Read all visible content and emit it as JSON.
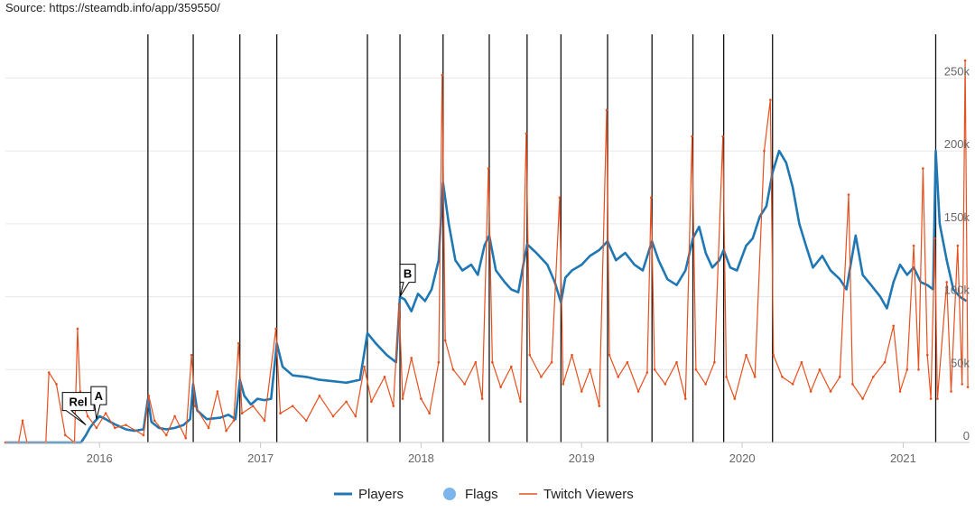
{
  "source_text": "Source: https://steamdb.info/app/359550/",
  "chart_data": {
    "type": "line",
    "grid": true,
    "x_range": [
      "2015-06-01",
      "2021-06-01"
    ],
    "y_range": [
      0,
      280000
    ],
    "y_ticks": [
      {
        "value": 0,
        "label": "0"
      },
      {
        "value": 50000,
        "label": "50k"
      },
      {
        "value": 100000,
        "label": "100k"
      },
      {
        "value": 150000,
        "label": "150k"
      },
      {
        "value": 200000,
        "label": "200k"
      },
      {
        "value": 250000,
        "label": "250k"
      }
    ],
    "x_ticks": [
      {
        "value": "2016-01-01",
        "label": "2016"
      },
      {
        "value": "2017-01-01",
        "label": "2017"
      },
      {
        "value": "2018-01-01",
        "label": "2018"
      },
      {
        "value": "2019-01-01",
        "label": "2019"
      },
      {
        "value": "2020-01-01",
        "label": "2020"
      },
      {
        "value": "2021-01-01",
        "label": "2021"
      }
    ],
    "event_lines": [
      "2016-04-20",
      "2016-08-01",
      "2016-11-15",
      "2017-02-07",
      "2017-09-01",
      "2017-11-14",
      "2018-02-20",
      "2018-06-05",
      "2018-08-30",
      "2018-11-15",
      "2019-03-01",
      "2019-06-10",
      "2019-09-11",
      "2019-11-20",
      "2020-03-10",
      "2021-03-16"
    ],
    "flags": [
      {
        "label": "Rel",
        "date": "2015-12-01",
        "value": 12000
      },
      {
        "label": "A",
        "date": "2015-12-25",
        "value": 16000
      },
      {
        "label": "B",
        "date": "2017-11-14",
        "value": 100000
      }
    ],
    "legend_position": "bottom",
    "series": [
      {
        "name": "Players",
        "color": "#1f77b4",
        "points": [
          [
            "2015-06-01",
            0
          ],
          [
            "2015-09-01",
            0
          ],
          [
            "2015-11-20",
            0
          ],
          [
            "2015-12-01",
            5000
          ],
          [
            "2015-12-10",
            10000
          ],
          [
            "2015-12-20",
            14000
          ],
          [
            "2016-01-01",
            18000
          ],
          [
            "2016-01-15",
            16000
          ],
          [
            "2016-02-01",
            13000
          ],
          [
            "2016-02-15",
            11000
          ],
          [
            "2016-03-01",
            9000
          ],
          [
            "2016-03-20",
            8000
          ],
          [
            "2016-04-10",
            9000
          ],
          [
            "2016-04-20",
            30000
          ],
          [
            "2016-04-28",
            14000
          ],
          [
            "2016-05-15",
            10000
          ],
          [
            "2016-06-01",
            9000
          ],
          [
            "2016-06-20",
            10000
          ],
          [
            "2016-07-10",
            12000
          ],
          [
            "2016-07-25",
            16000
          ],
          [
            "2016-08-01",
            40000
          ],
          [
            "2016-08-10",
            22000
          ],
          [
            "2016-09-01",
            16000
          ],
          [
            "2016-10-01",
            17000
          ],
          [
            "2016-10-20",
            19000
          ],
          [
            "2016-11-05",
            16000
          ],
          [
            "2016-11-15",
            43000
          ],
          [
            "2016-11-25",
            32000
          ],
          [
            "2016-12-10",
            26000
          ],
          [
            "2016-12-25",
            30000
          ],
          [
            "2017-01-10",
            29000
          ],
          [
            "2017-01-25",
            30000
          ],
          [
            "2017-02-07",
            68000
          ],
          [
            "2017-02-20",
            52000
          ],
          [
            "2017-03-15",
            46000
          ],
          [
            "2017-04-15",
            45000
          ],
          [
            "2017-05-15",
            43000
          ],
          [
            "2017-06-15",
            42000
          ],
          [
            "2017-07-15",
            41000
          ],
          [
            "2017-08-15",
            43000
          ],
          [
            "2017-09-01",
            75000
          ],
          [
            "2017-09-20",
            68000
          ],
          [
            "2017-10-15",
            60000
          ],
          [
            "2017-11-05",
            55000
          ],
          [
            "2017-11-14",
            100000
          ],
          [
            "2017-11-25",
            98000
          ],
          [
            "2017-12-10",
            90000
          ],
          [
            "2017-12-25",
            102000
          ],
          [
            "2018-01-10",
            97000
          ],
          [
            "2018-01-25",
            105000
          ],
          [
            "2018-02-10",
            125000
          ],
          [
            "2018-02-20",
            178000
          ],
          [
            "2018-03-05",
            150000
          ],
          [
            "2018-03-20",
            125000
          ],
          [
            "2018-04-05",
            118000
          ],
          [
            "2018-04-25",
            122000
          ],
          [
            "2018-05-10",
            115000
          ],
          [
            "2018-05-25",
            135000
          ],
          [
            "2018-06-05",
            142000
          ],
          [
            "2018-06-20",
            118000
          ],
          [
            "2018-07-10",
            110000
          ],
          [
            "2018-07-25",
            105000
          ],
          [
            "2018-08-10",
            103000
          ],
          [
            "2018-08-30",
            136000
          ],
          [
            "2018-09-20",
            130000
          ],
          [
            "2018-10-15",
            122000
          ],
          [
            "2018-11-01",
            110000
          ],
          [
            "2018-11-15",
            96000
          ],
          [
            "2018-11-25",
            113000
          ],
          [
            "2018-12-10",
            118000
          ],
          [
            "2019-01-01",
            122000
          ],
          [
            "2019-01-20",
            128000
          ],
          [
            "2019-02-10",
            132000
          ],
          [
            "2019-03-01",
            138000
          ],
          [
            "2019-03-20",
            125000
          ],
          [
            "2019-04-10",
            130000
          ],
          [
            "2019-05-01",
            122000
          ],
          [
            "2019-05-20",
            118000
          ],
          [
            "2019-06-10",
            138000
          ],
          [
            "2019-06-25",
            125000
          ],
          [
            "2019-07-15",
            112000
          ],
          [
            "2019-08-05",
            108000
          ],
          [
            "2019-08-25",
            118000
          ],
          [
            "2019-09-11",
            140000
          ],
          [
            "2019-09-25",
            148000
          ],
          [
            "2019-10-10",
            130000
          ],
          [
            "2019-10-25",
            120000
          ],
          [
            "2019-11-10",
            125000
          ],
          [
            "2019-11-20",
            132000
          ],
          [
            "2019-12-05",
            120000
          ],
          [
            "2019-12-20",
            118000
          ],
          [
            "2020-01-10",
            135000
          ],
          [
            "2020-01-25",
            140000
          ],
          [
            "2020-02-10",
            155000
          ],
          [
            "2020-02-25",
            162000
          ],
          [
            "2020-03-10",
            185000
          ],
          [
            "2020-03-25",
            200000
          ],
          [
            "2020-04-10",
            192000
          ],
          [
            "2020-04-25",
            175000
          ],
          [
            "2020-05-10",
            150000
          ],
          [
            "2020-05-25",
            135000
          ],
          [
            "2020-06-10",
            120000
          ],
          [
            "2020-07-01",
            128000
          ],
          [
            "2020-07-20",
            118000
          ],
          [
            "2020-08-10",
            112000
          ],
          [
            "2020-08-25",
            105000
          ],
          [
            "2020-09-15",
            142000
          ],
          [
            "2020-10-01",
            115000
          ],
          [
            "2020-10-20",
            108000
          ],
          [
            "2020-11-10",
            100000
          ],
          [
            "2020-11-25",
            92000
          ],
          [
            "2020-12-10",
            110000
          ],
          [
            "2020-12-25",
            122000
          ],
          [
            "2021-01-10",
            115000
          ],
          [
            "2021-01-25",
            120000
          ],
          [
            "2021-02-10",
            110000
          ],
          [
            "2021-02-25",
            108000
          ],
          [
            "2021-03-10",
            105000
          ],
          [
            "2021-03-16",
            200000
          ],
          [
            "2021-03-25",
            150000
          ],
          [
            "2021-04-10",
            125000
          ],
          [
            "2021-04-25",
            105000
          ],
          [
            "2021-05-10",
            100000
          ],
          [
            "2021-05-25",
            97000
          ]
        ]
      },
      {
        "name": "Twitch Viewers",
        "color": "#e6501e",
        "points": [
          [
            "2015-06-01",
            0
          ],
          [
            "2015-07-01",
            0
          ],
          [
            "2015-07-10",
            15000
          ],
          [
            "2015-07-20",
            0
          ],
          [
            "2015-09-01",
            0
          ],
          [
            "2015-09-08",
            48000
          ],
          [
            "2015-09-25",
            40000
          ],
          [
            "2015-10-15",
            5000
          ],
          [
            "2015-11-05",
            0
          ],
          [
            "2015-11-12",
            78000
          ],
          [
            "2015-11-18",
            35000
          ],
          [
            "2015-12-05",
            18000
          ],
          [
            "2015-12-25",
            10000
          ],
          [
            "2016-01-15",
            20000
          ],
          [
            "2016-02-05",
            10000
          ],
          [
            "2016-03-01",
            12000
          ],
          [
            "2016-04-10",
            5000
          ],
          [
            "2016-04-22",
            32000
          ],
          [
            "2016-05-05",
            15000
          ],
          [
            "2016-06-01",
            5000
          ],
          [
            "2016-06-20",
            18000
          ],
          [
            "2016-07-15",
            3000
          ],
          [
            "2016-07-28",
            60000
          ],
          [
            "2016-08-05",
            25000
          ],
          [
            "2016-09-05",
            10000
          ],
          [
            "2016-09-25",
            35000
          ],
          [
            "2016-10-15",
            8000
          ],
          [
            "2016-11-01",
            15000
          ],
          [
            "2016-11-12",
            68000
          ],
          [
            "2016-11-20",
            20000
          ],
          [
            "2016-12-15",
            25000
          ],
          [
            "2017-01-10",
            15000
          ],
          [
            "2017-02-05",
            78000
          ],
          [
            "2017-02-15",
            20000
          ],
          [
            "2017-03-15",
            25000
          ],
          [
            "2017-04-15",
            15000
          ],
          [
            "2017-05-15",
            32000
          ],
          [
            "2017-06-15",
            18000
          ],
          [
            "2017-07-15",
            28000
          ],
          [
            "2017-08-05",
            18000
          ],
          [
            "2017-08-25",
            52000
          ],
          [
            "2017-09-10",
            28000
          ],
          [
            "2017-10-10",
            45000
          ],
          [
            "2017-10-30",
            25000
          ],
          [
            "2017-11-12",
            95000
          ],
          [
            "2017-11-20",
            30000
          ],
          [
            "2017-12-10",
            58000
          ],
          [
            "2018-01-01",
            30000
          ],
          [
            "2018-01-20",
            20000
          ],
          [
            "2018-02-10",
            55000
          ],
          [
            "2018-02-18",
            252000
          ],
          [
            "2018-02-25",
            70000
          ],
          [
            "2018-03-15",
            50000
          ],
          [
            "2018-04-10",
            40000
          ],
          [
            "2018-05-05",
            55000
          ],
          [
            "2018-05-20",
            30000
          ],
          [
            "2018-06-03",
            188000
          ],
          [
            "2018-06-12",
            55000
          ],
          [
            "2018-07-01",
            38000
          ],
          [
            "2018-07-25",
            52000
          ],
          [
            "2018-08-15",
            28000
          ],
          [
            "2018-08-28",
            212000
          ],
          [
            "2018-09-05",
            60000
          ],
          [
            "2018-10-01",
            45000
          ],
          [
            "2018-10-25",
            55000
          ],
          [
            "2018-11-12",
            168000
          ],
          [
            "2018-11-20",
            40000
          ],
          [
            "2018-12-10",
            60000
          ],
          [
            "2019-01-01",
            35000
          ],
          [
            "2019-01-20",
            50000
          ],
          [
            "2019-02-10",
            25000
          ],
          [
            "2019-02-27",
            228000
          ],
          [
            "2019-03-05",
            60000
          ],
          [
            "2019-03-25",
            45000
          ],
          [
            "2019-04-15",
            55000
          ],
          [
            "2019-05-10",
            35000
          ],
          [
            "2019-05-30",
            48000
          ],
          [
            "2019-06-08",
            168000
          ],
          [
            "2019-06-16",
            50000
          ],
          [
            "2019-07-10",
            40000
          ],
          [
            "2019-08-05",
            55000
          ],
          [
            "2019-08-25",
            30000
          ],
          [
            "2019-09-09",
            210000
          ],
          [
            "2019-09-18",
            50000
          ],
          [
            "2019-10-10",
            40000
          ],
          [
            "2019-10-30",
            55000
          ],
          [
            "2019-11-18",
            210000
          ],
          [
            "2019-11-26",
            45000
          ],
          [
            "2019-12-15",
            30000
          ],
          [
            "2020-01-10",
            60000
          ],
          [
            "2020-01-30",
            45000
          ],
          [
            "2020-02-20",
            200000
          ],
          [
            "2020-03-05",
            235000
          ],
          [
            "2020-03-12",
            60000
          ],
          [
            "2020-04-01",
            45000
          ],
          [
            "2020-04-25",
            40000
          ],
          [
            "2020-05-15",
            55000
          ],
          [
            "2020-06-05",
            35000
          ],
          [
            "2020-06-25",
            50000
          ],
          [
            "2020-07-20",
            35000
          ],
          [
            "2020-08-10",
            45000
          ],
          [
            "2020-08-30",
            170000
          ],
          [
            "2020-09-08",
            40000
          ],
          [
            "2020-10-01",
            30000
          ],
          [
            "2020-10-25",
            45000
          ],
          [
            "2020-11-20",
            55000
          ],
          [
            "2020-12-10",
            80000
          ],
          [
            "2020-12-25",
            35000
          ],
          [
            "2021-01-10",
            50000
          ],
          [
            "2021-01-25",
            135000
          ],
          [
            "2021-02-05",
            50000
          ],
          [
            "2021-02-15",
            188000
          ],
          [
            "2021-02-25",
            60000
          ],
          [
            "2021-03-05",
            30000
          ],
          [
            "2021-03-14",
            140000
          ],
          [
            "2021-03-20",
            30000
          ],
          [
            "2021-04-10",
            110000
          ],
          [
            "2021-04-20",
            35000
          ],
          [
            "2021-05-05",
            135000
          ],
          [
            "2021-05-15",
            40000
          ],
          [
            "2021-05-22",
            262000
          ],
          [
            "2021-05-28",
            38000
          ]
        ]
      }
    ],
    "legend": [
      {
        "label": "Players",
        "color": "#1f77b4",
        "kind": "line"
      },
      {
        "label": "Flags",
        "color": "#7cb5ec",
        "kind": "circle"
      },
      {
        "label": "Twitch Viewers",
        "color": "#e6501e",
        "kind": "thin-line"
      }
    ]
  }
}
